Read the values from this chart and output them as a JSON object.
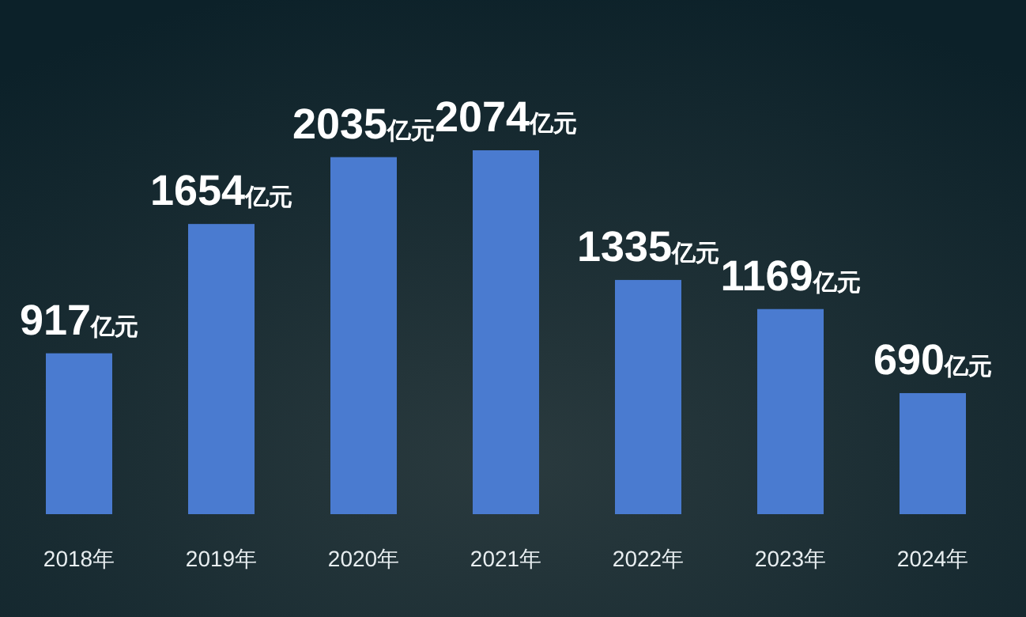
{
  "chart_data": {
    "type": "bar",
    "categories": [
      "2018年",
      "2019年",
      "2020年",
      "2021年",
      "2022年",
      "2023年",
      "2024年"
    ],
    "values": [
      917,
      1654,
      2035,
      2074,
      1335,
      1169,
      690
    ],
    "value_labels": [
      "917亿元",
      "1654亿元",
      "2035亿元",
      "2074亿元",
      "1335亿元",
      "1169亿元",
      "690亿元"
    ],
    "color": "#4a7bd0"
  }
}
